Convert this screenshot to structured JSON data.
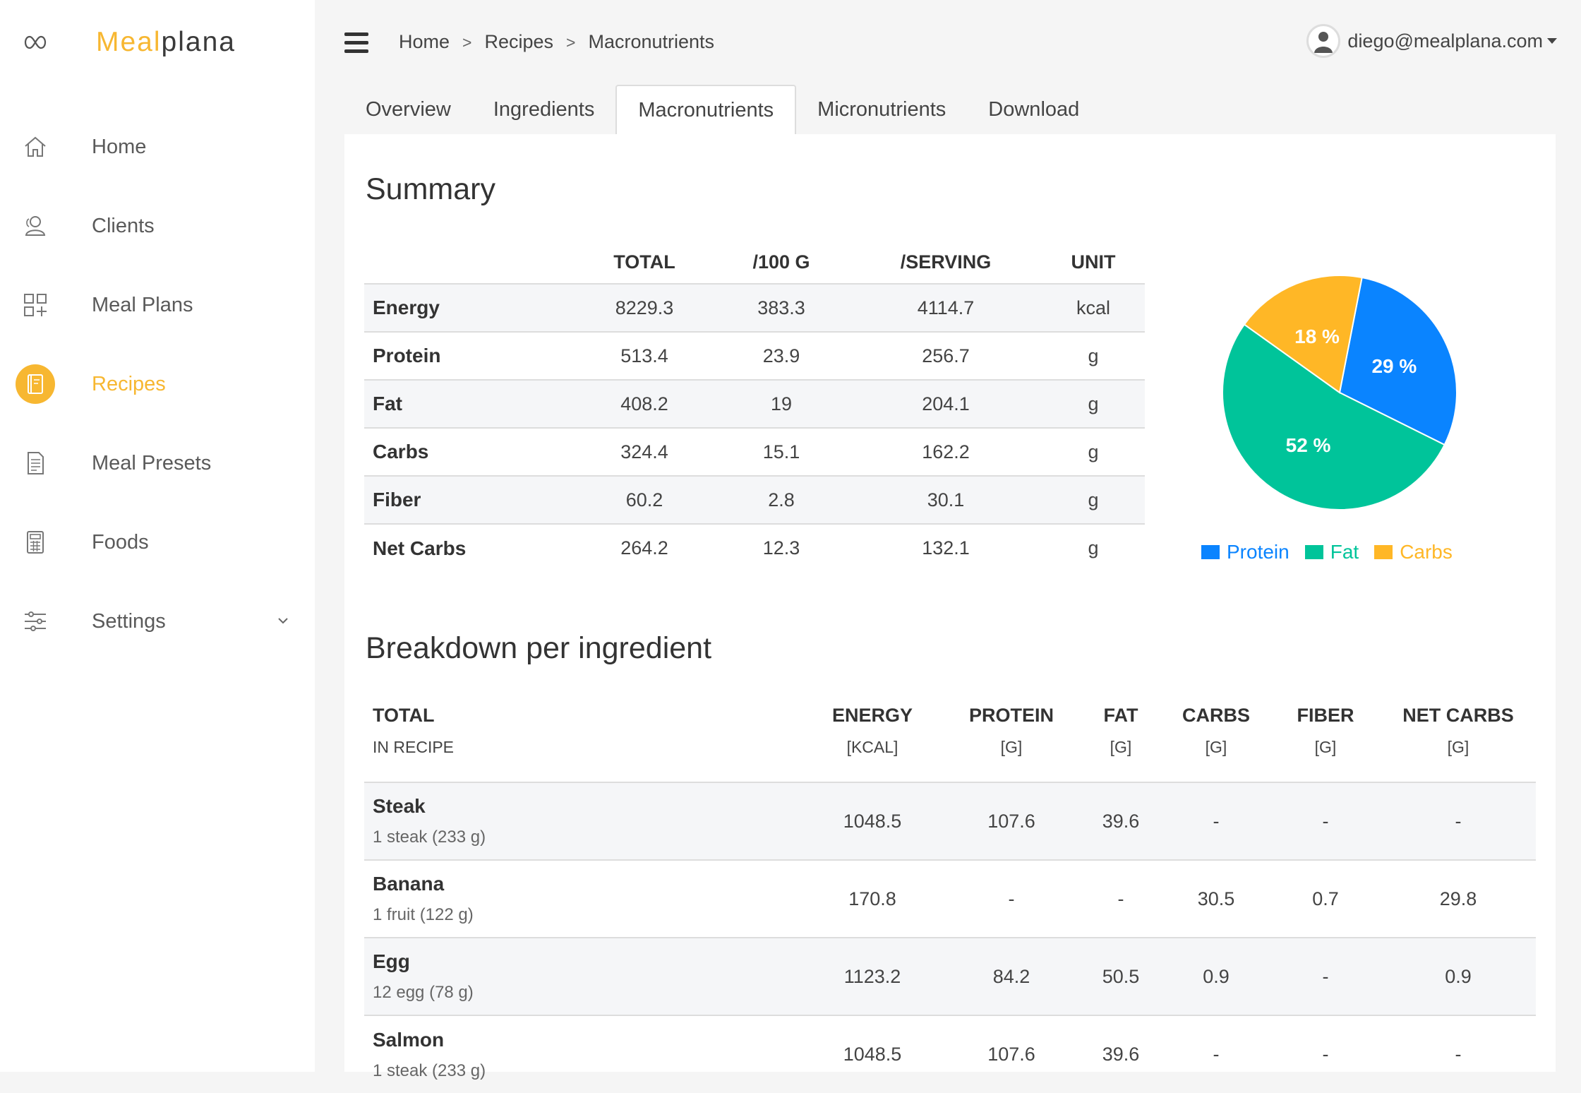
{
  "app": {
    "logo_part1": "Meal",
    "logo_part2": "plana"
  },
  "sidebar": {
    "items": [
      {
        "label": "Home",
        "icon": "home-icon"
      },
      {
        "label": "Clients",
        "icon": "users-icon"
      },
      {
        "label": "Meal Plans",
        "icon": "grid-add-icon"
      },
      {
        "label": "Recipes",
        "icon": "recipe-book-icon",
        "active": true
      },
      {
        "label": "Meal Presets",
        "icon": "document-list-icon"
      },
      {
        "label": "Foods",
        "icon": "calculator-icon"
      },
      {
        "label": "Settings",
        "icon": "sliders-icon"
      }
    ]
  },
  "header": {
    "breadcrumb": [
      "Home",
      "Recipes",
      "Macronutrients"
    ],
    "breadcrumb_sep": ">",
    "user_email": "diego@mealplana.com"
  },
  "tabs": [
    "Overview",
    "Ingredients",
    "Macronutrients",
    "Micronutrients",
    "Download"
  ],
  "summary": {
    "title": "Summary",
    "columns": [
      "TOTAL",
      "/100 G",
      "/SERVING",
      "UNIT"
    ],
    "rows": [
      {
        "name": "Energy",
        "total": "8229.3",
        "per100": "383.3",
        "serving": "4114.7",
        "unit": "kcal"
      },
      {
        "name": "Protein",
        "total": "513.4",
        "per100": "23.9",
        "serving": "256.7",
        "unit": "g"
      },
      {
        "name": "Fat",
        "total": "408.2",
        "per100": "19",
        "serving": "204.1",
        "unit": "g"
      },
      {
        "name": "Carbs",
        "total": "324.4",
        "per100": "15.1",
        "serving": "162.2",
        "unit": "g"
      },
      {
        "name": "Fiber",
        "total": "60.2",
        "per100": "2.8",
        "serving": "30.1",
        "unit": "g"
      },
      {
        "name": "Net Carbs",
        "total": "264.2",
        "per100": "12.3",
        "serving": "132.1",
        "unit": "g"
      }
    ]
  },
  "chart_data": {
    "type": "pie",
    "categories": [
      "Protein",
      "Fat",
      "Carbs"
    ],
    "values": [
      29,
      52,
      18
    ],
    "labels": [
      "29 %",
      "52 %",
      "18 %"
    ],
    "colors": [
      "#0a84ff",
      "#00c49a",
      "#ffb726"
    ],
    "legend": "bottom"
  },
  "breakdown": {
    "title": "Breakdown per ingredient",
    "columns": [
      {
        "label": "TOTAL",
        "sub": "IN RECIPE"
      },
      {
        "label": "ENERGY",
        "sub": "[KCAL]"
      },
      {
        "label": "PROTEIN",
        "sub": "[G]"
      },
      {
        "label": "FAT",
        "sub": "[G]"
      },
      {
        "label": "CARBS",
        "sub": "[G]"
      },
      {
        "label": "FIBER",
        "sub": "[G]"
      },
      {
        "label": "NET CARBS",
        "sub": "[G]"
      }
    ],
    "rows": [
      {
        "name": "Steak",
        "serving": "1 steak (233 g)",
        "energy": "1048.5",
        "protein": "107.6",
        "fat": "39.6",
        "carbs": "-",
        "fiber": "-",
        "net": "-"
      },
      {
        "name": "Banana",
        "serving": "1 fruit (122 g)",
        "energy": "170.8",
        "protein": "-",
        "fat": "-",
        "carbs": "30.5",
        "fiber": "0.7",
        "net": "29.8"
      },
      {
        "name": "Egg",
        "serving": "12 egg (78 g)",
        "energy": "1123.2",
        "protein": "84.2",
        "fat": "50.5",
        "carbs": "0.9",
        "fiber": "-",
        "net": "0.9"
      },
      {
        "name": "Salmon",
        "serving": "1 steak (233 g)",
        "energy": "1048.5",
        "protein": "107.6",
        "fat": "39.6",
        "carbs": "-",
        "fiber": "-",
        "net": "-"
      }
    ]
  }
}
